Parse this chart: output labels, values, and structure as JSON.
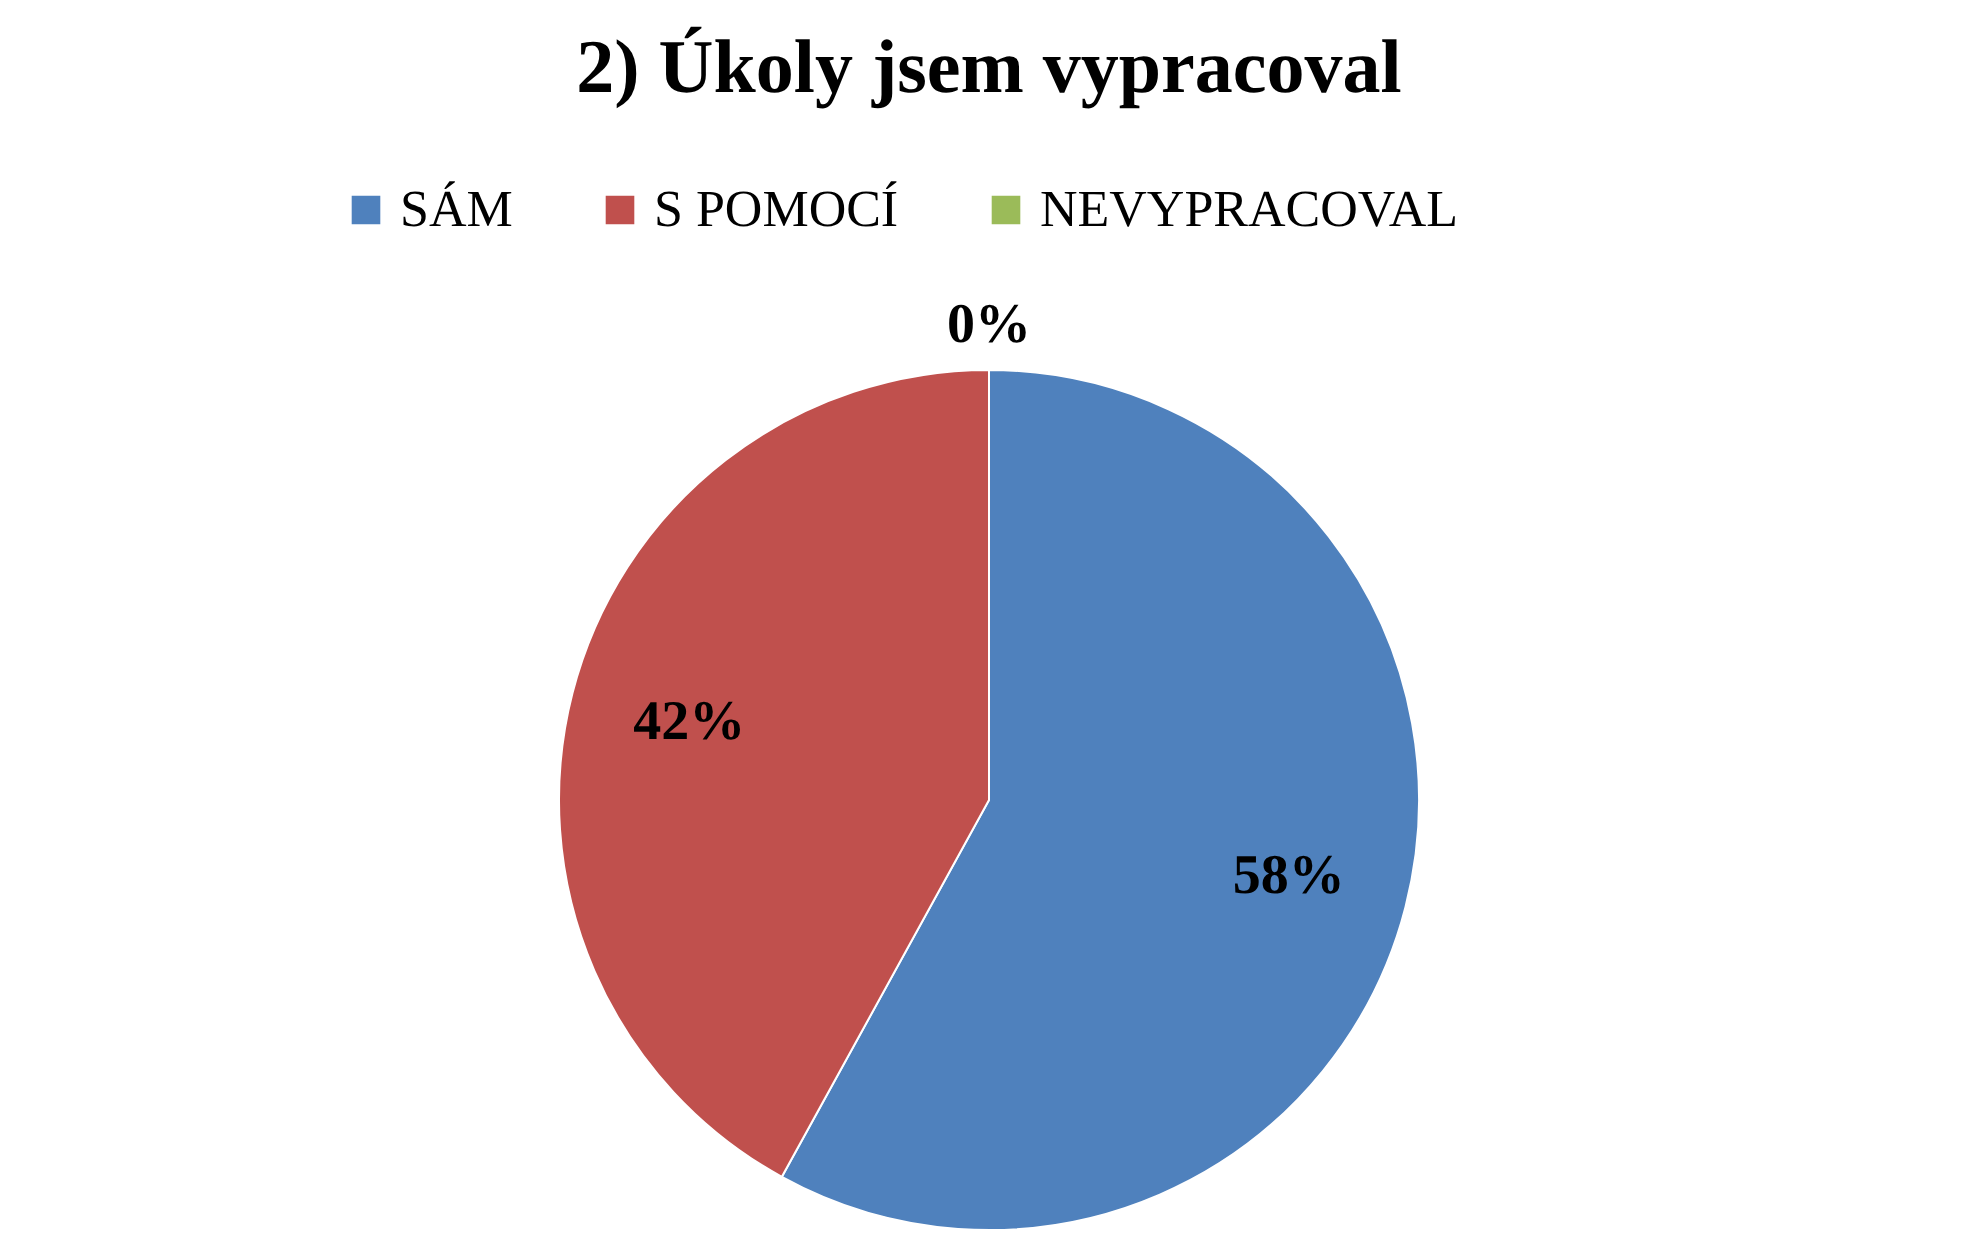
{
  "chart_data": {
    "type": "pie",
    "title": "2) Úkoly jsem vypracoval",
    "categories": [
      "SÁM",
      "S POMOCÍ",
      "NEVYPRACOVAL"
    ],
    "values": [
      58,
      42,
      0
    ],
    "colors": [
      "#4f81bd",
      "#c0504d",
      "#9bbb59"
    ],
    "value_labels": [
      "58%",
      "42%",
      "0%"
    ],
    "legend": "top"
  }
}
